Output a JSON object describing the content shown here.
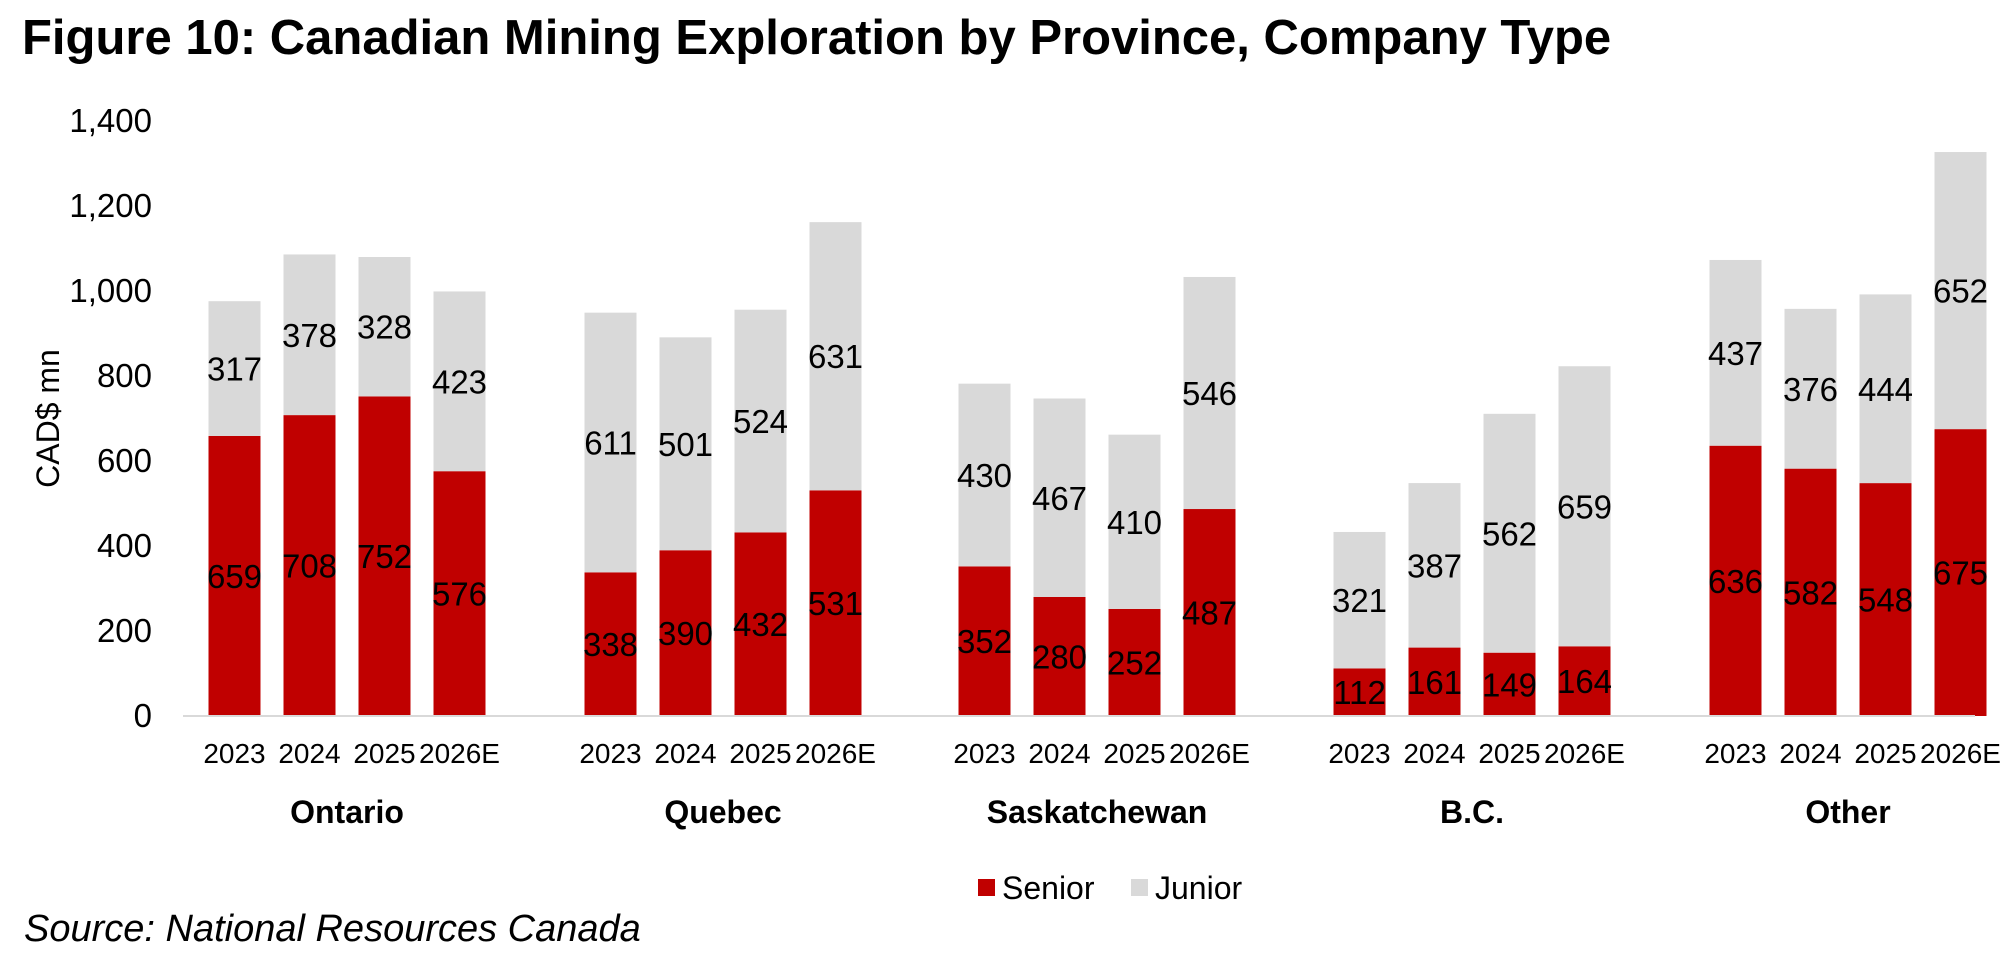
{
  "title": "Figure 10: Canadian Mining Exploration by Province, Company Type",
  "source": "Source: National Resources Canada",
  "chart_data": {
    "type": "bar",
    "stacked": true,
    "ylabel": "CAD$ mn",
    "ylim": [
      0,
      1400
    ],
    "yticks": [
      0,
      200,
      400,
      600,
      800,
      1000,
      1200,
      1400
    ],
    "ytick_labels": [
      "0",
      "200",
      "400",
      "600",
      "800",
      "1,000",
      "1,200",
      "1,400"
    ],
    "grid": false,
    "legend_position": "bottom",
    "groups": [
      {
        "name": "Ontario",
        "categories": [
          "2023",
          "2024",
          "2025",
          "2026E"
        ],
        "senior": [
          659,
          708,
          752,
          576
        ],
        "junior": [
          317,
          378,
          328,
          423
        ]
      },
      {
        "name": "Quebec",
        "categories": [
          "2023",
          "2024",
          "2025",
          "2026E"
        ],
        "senior": [
          338,
          390,
          432,
          531
        ],
        "junior": [
          611,
          501,
          524,
          631
        ]
      },
      {
        "name": "Saskatchewan",
        "categories": [
          "2023",
          "2024",
          "2025",
          "2026E"
        ],
        "senior": [
          352,
          280,
          252,
          487
        ],
        "junior": [
          430,
          467,
          410,
          546
        ]
      },
      {
        "name": "B.C.",
        "categories": [
          "2023",
          "2024",
          "2025",
          "2026E"
        ],
        "senior": [
          112,
          161,
          149,
          164
        ],
        "junior": [
          321,
          387,
          562,
          659
        ]
      },
      {
        "name": "Other",
        "categories": [
          "2023",
          "2024",
          "2025",
          "2026E"
        ],
        "senior": [
          636,
          582,
          548,
          675
        ],
        "junior": [
          437,
          376,
          444,
          652
        ]
      }
    ],
    "series": [
      {
        "name": "Senior",
        "key": "senior",
        "color": "#c00000"
      },
      {
        "name": "Junior",
        "key": "junior",
        "color": "#d9d9d9"
      }
    ]
  }
}
